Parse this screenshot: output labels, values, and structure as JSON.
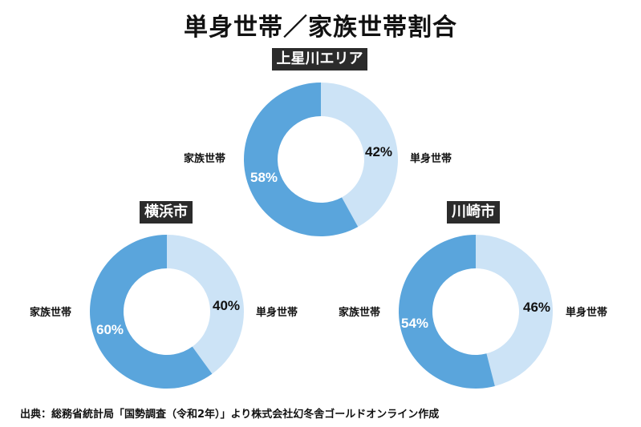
{
  "title": "単身世帯／家族世帯割合",
  "source": "出典：総務省統計局「国勢調査（令和2年）」より株式会社幻冬舎ゴールドオンライン作成",
  "colors": {
    "single": "#cce3f6",
    "family": "#5aa5dc",
    "label_bg": "#2b2b2b"
  },
  "chart_data": {
    "type": "pie",
    "variant": "donut",
    "title": "単身世帯／家族世帯割合",
    "charts": [
      {
        "region": "上星川エリア",
        "segments": [
          {
            "name": "単身世帯",
            "value": 42
          },
          {
            "name": "家族世帯",
            "value": 58
          }
        ]
      },
      {
        "region": "横浜市",
        "segments": [
          {
            "name": "単身世帯",
            "value": 40
          },
          {
            "name": "家族世帯",
            "value": 60
          }
        ]
      },
      {
        "region": "川崎市",
        "segments": [
          {
            "name": "単身世帯",
            "value": 46
          },
          {
            "name": "家族世帯",
            "value": 54
          }
        ]
      }
    ],
    "units": "%",
    "legend": "side labels (単身世帯 right, 家族世帯 left)",
    "source": "出典：総務省統計局「国勢調査（令和2年）」より株式会社幻冬舎ゴールドオンライン作成"
  },
  "charts": {
    "kamihoshikawa": {
      "region": "上星川エリア",
      "single_label": "単身世帯",
      "family_label": "家族世帯",
      "single_pct": "42%",
      "family_pct": "58%"
    },
    "yokohama": {
      "region": "横浜市",
      "single_label": "単身世帯",
      "family_label": "家族世帯",
      "single_pct": "40%",
      "family_pct": "60%"
    },
    "kawasaki": {
      "region": "川崎市",
      "single_label": "単身世帯",
      "family_label": "家族世帯",
      "single_pct": "46%",
      "family_pct": "54%"
    }
  }
}
